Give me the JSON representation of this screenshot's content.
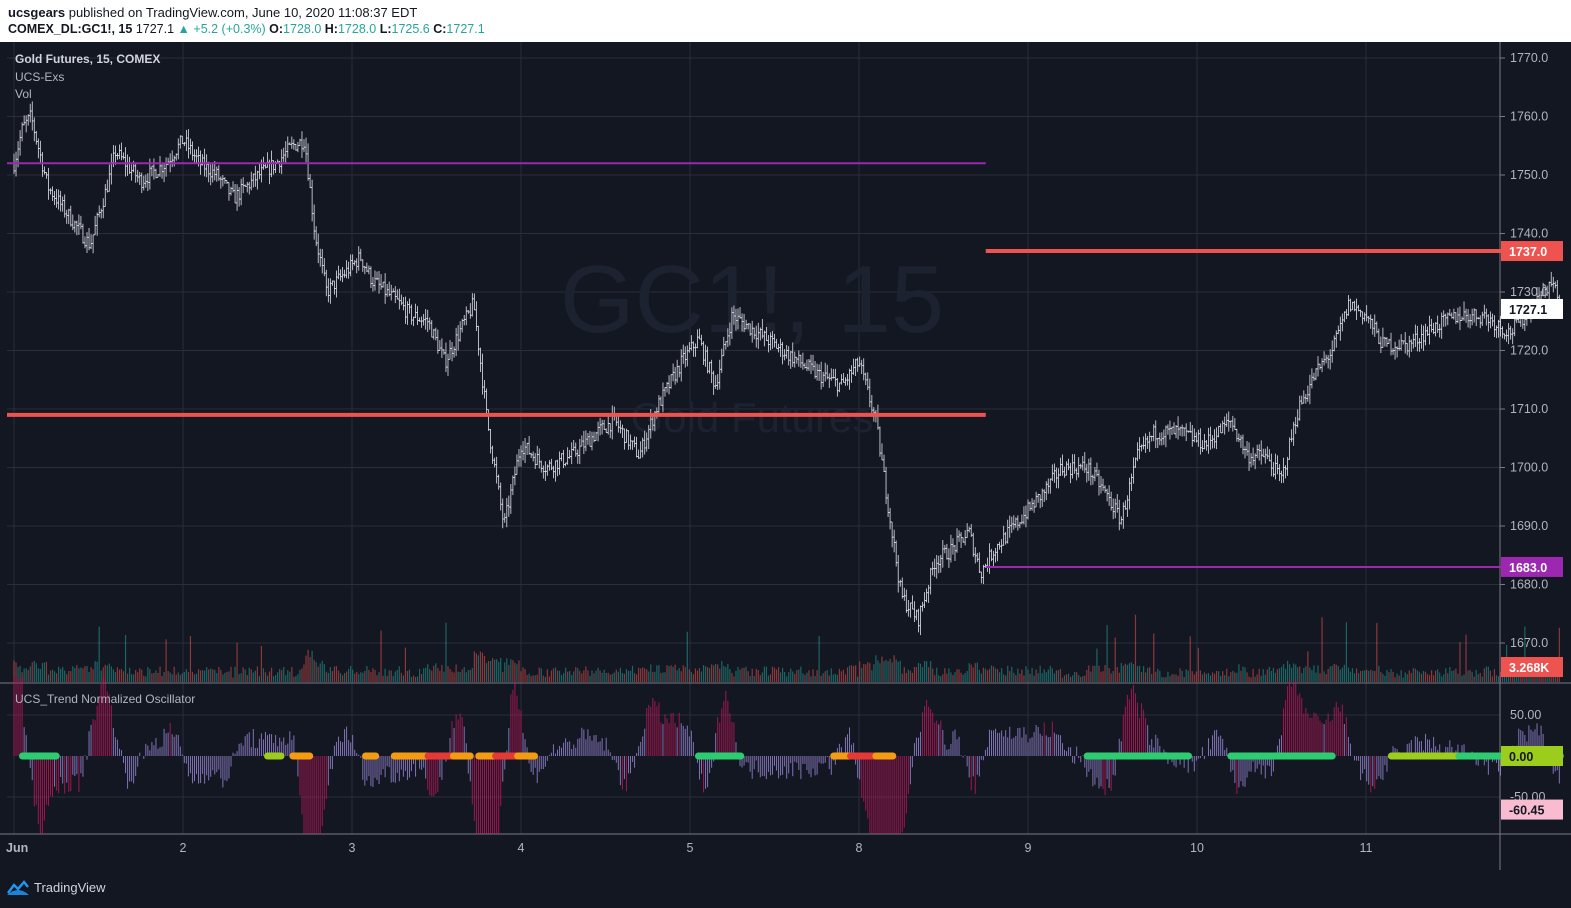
{
  "header": {
    "author": "ucsgears",
    "published_text": "published on TradingView.com, June 10, 2020 11:08:37 EDT",
    "symbol": "COMEX_DL:GC1!, 15",
    "last": "1727.1",
    "change": "+5.2 (+0.3%)",
    "ohlc": [
      {
        "k": "O:",
        "v": "1728.0"
      },
      {
        "k": "H:",
        "v": "1728.0"
      },
      {
        "k": "L:",
        "v": "1725.6"
      },
      {
        "k": "C:",
        "v": "1727.1"
      }
    ]
  },
  "legends": {
    "main_title": "Gold Futures, 15, COMEX",
    "indicator1": "UCS-Exs",
    "indicator2": "Vol",
    "oscillator": "UCS_Trend Normalized Oscillator"
  },
  "watermark": {
    "symbol": "GC1!, 15",
    "name": "Gold Futures"
  },
  "footer": {
    "brand": "TradingView"
  },
  "colors": {
    "background": "#131722",
    "grid": "#2a2e39",
    "candle": "#e0e3eb",
    "red_line": "#ef5350",
    "purple_line": "#9c27b0",
    "vol_up": "#26a69a",
    "vol_down": "#ef5350",
    "osc_green": "#2ecc71",
    "osc_lime": "#9ccc1c",
    "osc_orange": "#f39c12",
    "osc_red": "#e53935"
  },
  "chart_data": [
    {
      "type": "candlestick",
      "title": "Gold Futures, 15, COMEX",
      "x_ticks": [
        "Jun",
        "2",
        "3",
        "4",
        "5",
        "8",
        "9",
        "10",
        "11"
      ],
      "y_ticks": [
        "1770.0",
        "1760.0",
        "1750.0",
        "1740.0",
        "1730.0",
        "1720.0",
        "1710.0",
        "1700.0",
        "1690.0",
        "1680.0",
        "1670.0"
      ],
      "ylim": [
        1664,
        1773
      ],
      "close_path": [
        [
          0,
          1752
        ],
        [
          0.05,
          1758
        ],
        [
          0.1,
          1760
        ],
        [
          0.2,
          1748
        ],
        [
          0.35,
          1742
        ],
        [
          0.45,
          1738
        ],
        [
          0.55,
          1748
        ],
        [
          0.6,
          1754
        ],
        [
          0.75,
          1749
        ],
        [
          0.9,
          1752
        ],
        [
          1.0,
          1756
        ],
        [
          1.1,
          1752
        ],
        [
          1.2,
          1750
        ],
        [
          1.3,
          1746
        ],
        [
          1.45,
          1750
        ],
        [
          1.55,
          1752
        ],
        [
          1.65,
          1755
        ],
        [
          1.72,
          1756
        ],
        [
          1.78,
          1740
        ],
        [
          1.85,
          1730
        ],
        [
          1.95,
          1733
        ],
        [
          2.05,
          1736
        ],
        [
          2.12,
          1732
        ],
        [
          2.2,
          1730
        ],
        [
          2.28,
          1728
        ],
        [
          2.35,
          1726
        ],
        [
          2.45,
          1725
        ],
        [
          2.55,
          1718
        ],
        [
          2.65,
          1724
        ],
        [
          2.72,
          1728
        ],
        [
          2.8,
          1708
        ],
        [
          2.9,
          1690
        ],
        [
          3.0,
          1704
        ],
        [
          3.15,
          1700
        ],
        [
          3.3,
          1702
        ],
        [
          3.45,
          1706
        ],
        [
          3.55,
          1708
        ],
        [
          3.7,
          1702
        ],
        [
          3.8,
          1710
        ],
        [
          3.95,
          1718
        ],
        [
          4.05,
          1722
        ],
        [
          4.15,
          1714
        ],
        [
          4.25,
          1726
        ],
        [
          4.35,
          1724
        ],
        [
          4.55,
          1720
        ],
        [
          4.75,
          1716
        ],
        [
          4.9,
          1714
        ],
        [
          5.0,
          1718
        ],
        [
          5.1,
          1708
        ],
        [
          5.25,
          1678
        ],
        [
          5.35,
          1674
        ],
        [
          5.45,
          1684
        ],
        [
          5.55,
          1686
        ],
        [
          5.65,
          1689
        ],
        [
          5.72,
          1682
        ],
        [
          5.8,
          1686
        ],
        [
          5.95,
          1691
        ],
        [
          6.1,
          1696
        ],
        [
          6.2,
          1700
        ],
        [
          6.35,
          1700
        ],
        [
          6.45,
          1696
        ],
        [
          6.55,
          1691
        ],
        [
          6.65,
          1702
        ],
        [
          6.75,
          1706
        ],
        [
          6.9,
          1706
        ],
        [
          7.05,
          1704
        ],
        [
          7.2,
          1708
        ],
        [
          7.3,
          1702
        ],
        [
          7.4,
          1702
        ],
        [
          7.5,
          1698
        ],
        [
          7.6,
          1710
        ],
        [
          7.7,
          1716
        ],
        [
          7.8,
          1720
        ],
        [
          7.9,
          1728
        ],
        [
          8.0,
          1726
        ],
        [
          8.1,
          1721
        ],
        [
          8.25,
          1721
        ],
        [
          8.4,
          1724
        ],
        [
          8.55,
          1726
        ],
        [
          8.7,
          1726
        ],
        [
          8.85,
          1723
        ],
        [
          9.0,
          1728
        ],
        [
          9.1,
          1732
        ],
        [
          9.15,
          1727
        ]
      ]
    },
    {
      "type": "bar",
      "title": "Vol",
      "label": "3.268K"
    },
    {
      "type": "bar",
      "title": "UCS_Trend Normalized Oscillator",
      "y_ticks": [
        "50.00",
        "0.00",
        "-50.00"
      ],
      "ylim": [
        -100,
        100
      ],
      "last_value": "-60.45",
      "zero_label": "0.00",
      "signal_segments": [
        {
          "x": [
            0.05,
            0.25
          ],
          "color": "#2ecc71"
        },
        {
          "x": [
            1.5,
            1.58
          ],
          "color": "#9ccc1c"
        },
        {
          "x": [
            1.65,
            1.75
          ],
          "color": "#f39c12"
        },
        {
          "x": [
            2.08,
            2.14
          ],
          "color": "#f39c12"
        },
        {
          "x": [
            2.25,
            2.45
          ],
          "color": "#f39c12"
        },
        {
          "x": [
            2.45,
            2.6
          ],
          "color": "#e53935"
        },
        {
          "x": [
            2.6,
            2.7
          ],
          "color": "#f39c12"
        },
        {
          "x": [
            2.75,
            2.85
          ],
          "color": "#f39c12"
        },
        {
          "x": [
            2.85,
            2.98
          ],
          "color": "#e53935"
        },
        {
          "x": [
            2.98,
            3.08
          ],
          "color": "#f39c12"
        },
        {
          "x": [
            4.05,
            4.3
          ],
          "color": "#2ecc71"
        },
        {
          "x": [
            4.85,
            4.95
          ],
          "color": "#f39c12"
        },
        {
          "x": [
            4.95,
            5.1
          ],
          "color": "#e53935"
        },
        {
          "x": [
            5.1,
            5.2
          ],
          "color": "#f39c12"
        },
        {
          "x": [
            6.35,
            6.95
          ],
          "color": "#2ecc71"
        },
        {
          "x": [
            7.2,
            7.8
          ],
          "color": "#2ecc71"
        },
        {
          "x": [
            8.15,
            8.55
          ],
          "color": "#9ccc1c"
        },
        {
          "x": [
            8.55,
            9.15
          ],
          "color": "#2ecc71"
        }
      ]
    }
  ],
  "levels": [
    {
      "value": 1737.0,
      "label": "1737.0",
      "x_range": [
        5.75,
        9.15
      ],
      "color": "#ef5350"
    },
    {
      "value": 1709.0,
      "label": "",
      "x_range": [
        0,
        5.75
      ],
      "color": "#ef5350"
    },
    {
      "value": 1752.0,
      "label": "",
      "x_range": [
        0,
        5.75
      ],
      "color": "#9c27b0"
    },
    {
      "value": 1683.0,
      "label": "1683.0",
      "x_range": [
        5.75,
        9.15
      ],
      "color": "#9c27b0"
    }
  ],
  "price_badges": {
    "last": "1727.1",
    "last_value": 1727.1
  }
}
